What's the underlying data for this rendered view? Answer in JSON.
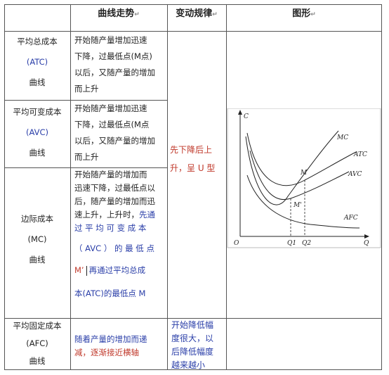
{
  "header": {
    "col_curve": "曲线走势",
    "col_rule": "变动规律",
    "col_graph": "图形",
    "mark": "↵"
  },
  "rows": {
    "atc": {
      "name1": "平均总成本",
      "name2": "(ATC)",
      "name3": "曲线",
      "trend": [
        "开始随产量增加迅速",
        "下降，过最低点(M点)",
        "以后，又随产量的增加",
        "而上升"
      ]
    },
    "avc": {
      "name1": "平均可变成本",
      "name2": "(AVC)",
      "name3": "曲线",
      "trend": [
        "开始随产量增加迅速",
        "下降，过最低点(M点",
        "以后，又随产量的增加",
        "而上升"
      ]
    },
    "mc": {
      "name1": "边际成本",
      "name2": "(MC)",
      "name3": "曲线",
      "trend_a": [
        "开始随产量的增加而",
        "迅速下降，过最低点以",
        "后，随产量的增加而迅",
        "速上升，上升时，"
      ],
      "trend_b1": "先通",
      "trend_b2": "过 平 均 可 变 成 本",
      "trend_b3": "（ AVC ） 的 最 低 点",
      "trend_b4": "M’",
      "trend_b5": "再通过平均总成",
      "trend_b6": "本(ATC)的最低点 M"
    },
    "afc": {
      "name1": "平均固定成本",
      "name2": "(AFC)",
      "name3": "曲线",
      "trend": [
        "随着产量的增加而递",
        "减，逐渐接近横轴"
      ],
      "rule": [
        "开始降低幅",
        "度很大，以",
        "后降低幅度",
        "越来越小"
      ]
    }
  },
  "shared_rule": [
    "先下降后上",
    "升，呈 U 型"
  ],
  "graph": {
    "labels": {
      "c": "C",
      "o": "O",
      "q": "Q",
      "mc": "MC",
      "atc": "ATC",
      "avc": "AVC",
      "afc": "AFC",
      "m": "M",
      "m2": "M'",
      "q1": "Q1",
      "q2": "Q2"
    }
  }
}
